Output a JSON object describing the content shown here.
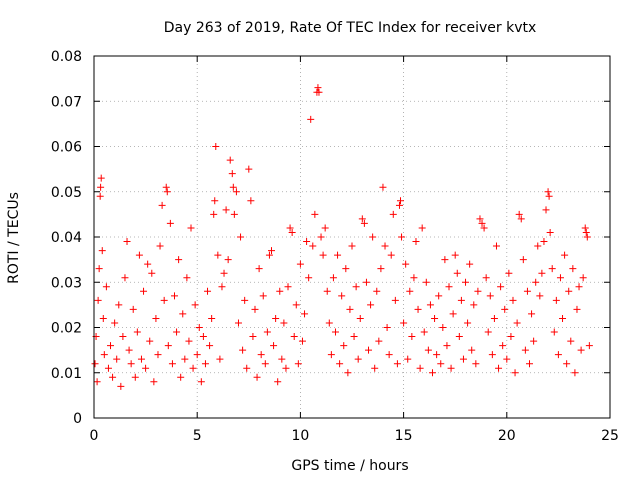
{
  "chart_data": {
    "type": "scatter",
    "title": "Day 263 of 2019, Rate Of TEC Index for receiver kvtx",
    "xlabel": "GPS time / hours",
    "ylabel": "ROTI / TECUs",
    "xlim": [
      0,
      25
    ],
    "ylim": [
      0,
      0.08
    ],
    "xticks": [
      0,
      5,
      10,
      15,
      20,
      25
    ],
    "yticks": [
      0,
      0.01,
      0.02,
      0.03,
      0.04,
      0.05,
      0.06,
      0.07,
      0.08
    ],
    "xtick_labels": [
      "0",
      "5",
      "10",
      "15",
      "20",
      "25"
    ],
    "ytick_labels": [
      "0",
      "0.01",
      "0.02",
      "0.03",
      "0.04",
      "0.05",
      "0.06",
      "0.07",
      "0.08"
    ],
    "grid": true,
    "marker": "+",
    "color": "#ff0000",
    "series": [
      {
        "name": "ROTI",
        "points": [
          [
            0.05,
            0.012
          ],
          [
            0.1,
            0.018
          ],
          [
            0.15,
            0.008
          ],
          [
            0.2,
            0.026
          ],
          [
            0.25,
            0.033
          ],
          [
            0.3,
            0.049
          ],
          [
            0.32,
            0.051
          ],
          [
            0.35,
            0.053
          ],
          [
            0.4,
            0.037
          ],
          [
            0.45,
            0.022
          ],
          [
            0.5,
            0.014
          ],
          [
            0.6,
            0.029
          ],
          [
            0.7,
            0.011
          ],
          [
            0.8,
            0.016
          ],
          [
            0.9,
            0.009
          ],
          [
            1.0,
            0.021
          ],
          [
            1.1,
            0.013
          ],
          [
            1.2,
            0.025
          ],
          [
            1.3,
            0.007
          ],
          [
            1.4,
            0.018
          ],
          [
            1.5,
            0.031
          ],
          [
            1.6,
            0.039
          ],
          [
            1.7,
            0.015
          ],
          [
            1.8,
            0.012
          ],
          [
            1.9,
            0.024
          ],
          [
            2.0,
            0.009
          ],
          [
            2.1,
            0.019
          ],
          [
            2.2,
            0.036
          ],
          [
            2.3,
            0.013
          ],
          [
            2.4,
            0.028
          ],
          [
            2.5,
            0.011
          ],
          [
            2.6,
            0.034
          ],
          [
            2.7,
            0.017
          ],
          [
            2.8,
            0.032
          ],
          [
            2.9,
            0.008
          ],
          [
            3.0,
            0.022
          ],
          [
            3.1,
            0.014
          ],
          [
            3.2,
            0.038
          ],
          [
            3.3,
            0.047
          ],
          [
            3.4,
            0.026
          ],
          [
            3.5,
            0.051
          ],
          [
            3.55,
            0.05
          ],
          [
            3.6,
            0.016
          ],
          [
            3.7,
            0.043
          ],
          [
            3.8,
            0.012
          ],
          [
            3.9,
            0.027
          ],
          [
            4.0,
            0.019
          ],
          [
            4.1,
            0.035
          ],
          [
            4.2,
            0.009
          ],
          [
            4.3,
            0.023
          ],
          [
            4.4,
            0.013
          ],
          [
            4.5,
            0.031
          ],
          [
            4.6,
            0.017
          ],
          [
            4.7,
            0.042
          ],
          [
            4.8,
            0.011
          ],
          [
            4.9,
            0.025
          ],
          [
            5.0,
            0.014
          ],
          [
            5.1,
            0.02
          ],
          [
            5.2,
            0.008
          ],
          [
            5.3,
            0.018
          ],
          [
            5.4,
            0.012
          ],
          [
            5.5,
            0.028
          ],
          [
            5.6,
            0.016
          ],
          [
            5.7,
            0.022
          ],
          [
            5.8,
            0.045
          ],
          [
            5.85,
            0.048
          ],
          [
            5.9,
            0.06
          ],
          [
            6.0,
            0.036
          ],
          [
            6.1,
            0.013
          ],
          [
            6.2,
            0.029
          ],
          [
            6.3,
            0.032
          ],
          [
            6.4,
            0.046
          ],
          [
            6.5,
            0.035
          ],
          [
            6.6,
            0.057
          ],
          [
            6.7,
            0.054
          ],
          [
            6.75,
            0.051
          ],
          [
            6.8,
            0.045
          ],
          [
            6.9,
            0.05
          ],
          [
            7.0,
            0.021
          ],
          [
            7.1,
            0.04
          ],
          [
            7.2,
            0.015
          ],
          [
            7.3,
            0.026
          ],
          [
            7.4,
            0.011
          ],
          [
            7.5,
            0.055
          ],
          [
            7.6,
            0.048
          ],
          [
            7.7,
            0.018
          ],
          [
            7.8,
            0.024
          ],
          [
            7.9,
            0.009
          ],
          [
            8.0,
            0.033
          ],
          [
            8.1,
            0.014
          ],
          [
            8.2,
            0.027
          ],
          [
            8.3,
            0.012
          ],
          [
            8.4,
            0.019
          ],
          [
            8.5,
            0.036
          ],
          [
            8.6,
            0.037
          ],
          [
            8.7,
            0.016
          ],
          [
            8.8,
            0.022
          ],
          [
            8.9,
            0.008
          ],
          [
            9.0,
            0.028
          ],
          [
            9.1,
            0.013
          ],
          [
            9.2,
            0.021
          ],
          [
            9.3,
            0.011
          ],
          [
            9.4,
            0.029
          ],
          [
            9.5,
            0.042
          ],
          [
            9.6,
            0.041
          ],
          [
            9.7,
            0.018
          ],
          [
            9.8,
            0.025
          ],
          [
            9.9,
            0.012
          ],
          [
            10.0,
            0.034
          ],
          [
            10.1,
            0.017
          ],
          [
            10.2,
            0.023
          ],
          [
            10.3,
            0.039
          ],
          [
            10.4,
            0.031
          ],
          [
            10.5,
            0.066
          ],
          [
            10.6,
            0.038
          ],
          [
            10.7,
            0.045
          ],
          [
            10.8,
            0.072
          ],
          [
            10.85,
            0.073
          ],
          [
            10.9,
            0.072
          ],
          [
            11.0,
            0.04
          ],
          [
            11.1,
            0.036
          ],
          [
            11.2,
            0.042
          ],
          [
            11.3,
            0.028
          ],
          [
            11.4,
            0.021
          ],
          [
            11.5,
            0.014
          ],
          [
            11.6,
            0.031
          ],
          [
            11.7,
            0.019
          ],
          [
            11.8,
            0.036
          ],
          [
            11.9,
            0.012
          ],
          [
            12.0,
            0.027
          ],
          [
            12.1,
            0.016
          ],
          [
            12.2,
            0.033
          ],
          [
            12.3,
            0.01
          ],
          [
            12.4,
            0.024
          ],
          [
            12.5,
            0.038
          ],
          [
            12.6,
            0.018
          ],
          [
            12.7,
            0.029
          ],
          [
            12.8,
            0.013
          ],
          [
            12.9,
            0.022
          ],
          [
            13.0,
            0.044
          ],
          [
            13.1,
            0.043
          ],
          [
            13.2,
            0.03
          ],
          [
            13.3,
            0.015
          ],
          [
            13.4,
            0.025
          ],
          [
            13.5,
            0.04
          ],
          [
            13.6,
            0.011
          ],
          [
            13.7,
            0.028
          ],
          [
            13.8,
            0.017
          ],
          [
            13.9,
            0.033
          ],
          [
            14.0,
            0.051
          ],
          [
            14.1,
            0.038
          ],
          [
            14.2,
            0.02
          ],
          [
            14.3,
            0.014
          ],
          [
            14.4,
            0.036
          ],
          [
            14.5,
            0.045
          ],
          [
            14.6,
            0.026
          ],
          [
            14.7,
            0.012
          ],
          [
            14.8,
            0.047
          ],
          [
            14.85,
            0.048
          ],
          [
            14.9,
            0.04
          ],
          [
            15.0,
            0.021
          ],
          [
            15.1,
            0.034
          ],
          [
            15.2,
            0.013
          ],
          [
            15.3,
            0.028
          ],
          [
            15.4,
            0.018
          ],
          [
            15.5,
            0.031
          ],
          [
            15.6,
            0.039
          ],
          [
            15.7,
            0.024
          ],
          [
            15.8,
            0.011
          ],
          [
            15.9,
            0.042
          ],
          [
            16.0,
            0.019
          ],
          [
            16.1,
            0.03
          ],
          [
            16.2,
            0.015
          ],
          [
            16.3,
            0.025
          ],
          [
            16.4,
            0.01
          ],
          [
            16.5,
            0.022
          ],
          [
            16.6,
            0.014
          ],
          [
            16.7,
            0.027
          ],
          [
            16.8,
            0.012
          ],
          [
            16.9,
            0.02
          ],
          [
            17.0,
            0.035
          ],
          [
            17.1,
            0.016
          ],
          [
            17.2,
            0.029
          ],
          [
            17.3,
            0.011
          ],
          [
            17.4,
            0.023
          ],
          [
            17.5,
            0.036
          ],
          [
            17.6,
            0.032
          ],
          [
            17.7,
            0.018
          ],
          [
            17.8,
            0.026
          ],
          [
            17.9,
            0.013
          ],
          [
            18.0,
            0.03
          ],
          [
            18.1,
            0.021
          ],
          [
            18.2,
            0.034
          ],
          [
            18.3,
            0.015
          ],
          [
            18.4,
            0.025
          ],
          [
            18.5,
            0.012
          ],
          [
            18.6,
            0.028
          ],
          [
            18.7,
            0.044
          ],
          [
            18.8,
            0.043
          ],
          [
            18.9,
            0.042
          ],
          [
            19.0,
            0.031
          ],
          [
            19.1,
            0.019
          ],
          [
            19.2,
            0.027
          ],
          [
            19.3,
            0.014
          ],
          [
            19.4,
            0.022
          ],
          [
            19.5,
            0.038
          ],
          [
            19.6,
            0.011
          ],
          [
            19.7,
            0.029
          ],
          [
            19.8,
            0.016
          ],
          [
            19.9,
            0.024
          ],
          [
            20.0,
            0.013
          ],
          [
            20.1,
            0.032
          ],
          [
            20.2,
            0.018
          ],
          [
            20.3,
            0.026
          ],
          [
            20.4,
            0.01
          ],
          [
            20.5,
            0.021
          ],
          [
            20.6,
            0.045
          ],
          [
            20.7,
            0.044
          ],
          [
            20.8,
            0.035
          ],
          [
            20.9,
            0.015
          ],
          [
            21.0,
            0.028
          ],
          [
            21.1,
            0.012
          ],
          [
            21.2,
            0.023
          ],
          [
            21.3,
            0.017
          ],
          [
            21.4,
            0.03
          ],
          [
            21.5,
            0.038
          ],
          [
            21.6,
            0.027
          ],
          [
            21.7,
            0.032
          ],
          [
            21.8,
            0.039
          ],
          [
            21.9,
            0.046
          ],
          [
            22.0,
            0.05
          ],
          [
            22.05,
            0.049
          ],
          [
            22.1,
            0.041
          ],
          [
            22.2,
            0.033
          ],
          [
            22.3,
            0.019
          ],
          [
            22.4,
            0.026
          ],
          [
            22.5,
            0.014
          ],
          [
            22.6,
            0.031
          ],
          [
            22.7,
            0.022
          ],
          [
            22.8,
            0.036
          ],
          [
            22.9,
            0.012
          ],
          [
            23.0,
            0.028
          ],
          [
            23.1,
            0.017
          ],
          [
            23.2,
            0.033
          ],
          [
            23.3,
            0.01
          ],
          [
            23.4,
            0.024
          ],
          [
            23.5,
            0.029
          ],
          [
            23.6,
            0.015
          ],
          [
            23.7,
            0.031
          ],
          [
            23.8,
            0.042
          ],
          [
            23.85,
            0.041
          ],
          [
            23.9,
            0.04
          ],
          [
            24.0,
            0.016
          ]
        ]
      }
    ]
  }
}
